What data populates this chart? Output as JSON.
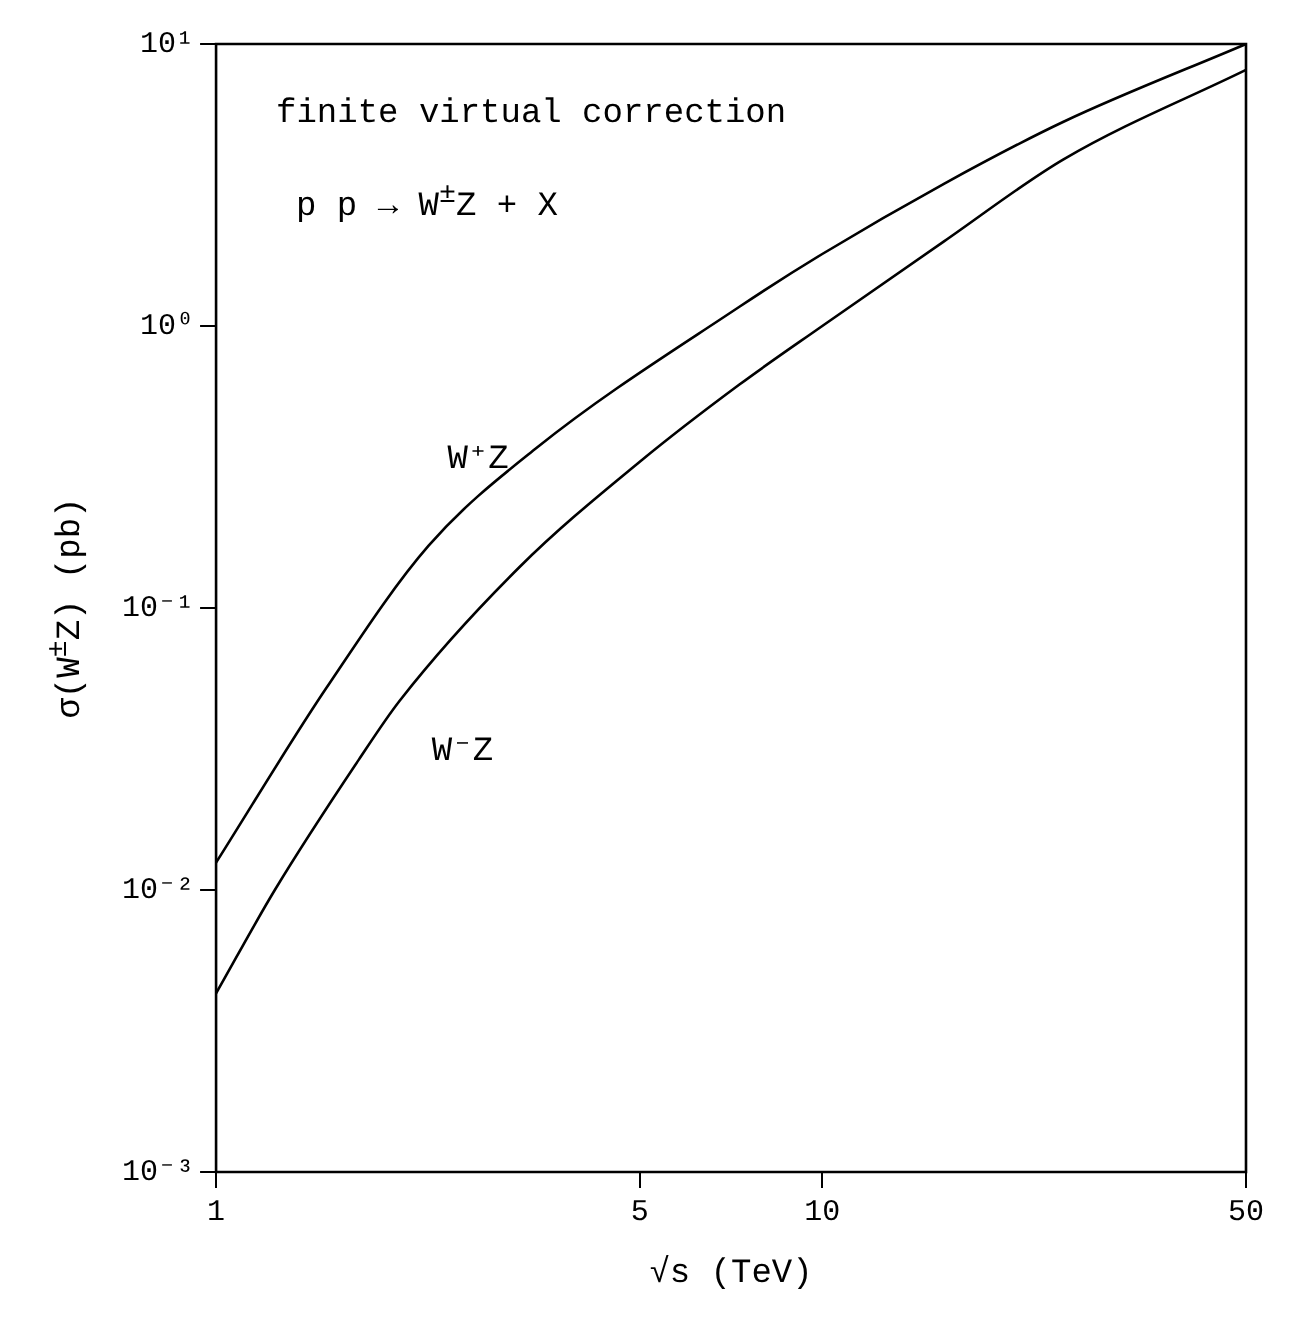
{
  "chart_data": {
    "type": "line",
    "xlabel": "√s (TeV)",
    "ylabel": "σ(W$^{±}$Z) (pb)",
    "annotations": [
      "finite virtual correction",
      "p p → W$^{±}$Z + X"
    ],
    "log": "xy",
    "xlim": [
      1,
      50
    ],
    "ylim": [
      0.001,
      10
    ],
    "xticks": [
      1,
      5,
      10,
      50
    ],
    "yticks": [
      {
        "value": 0.001,
        "label": "10⁻³"
      },
      {
        "value": 0.01,
        "label": "10⁻²"
      },
      {
        "value": 0.1,
        "label": "10⁻¹"
      },
      {
        "value": 1,
        "label": "10⁰"
      },
      {
        "value": 10,
        "label": "10¹"
      }
    ],
    "grid": false,
    "legend": false,
    "marker": "none",
    "line_style": "solid",
    "series": [
      {
        "name": "W⁺Z",
        "color": "#000000",
        "x": [
          1,
          1.52,
          2.24,
          3.38,
          7.3,
          10,
          15.9,
          25,
          50
        ],
        "values": [
          0.0125,
          0.052,
          0.166,
          0.37,
          1.17,
          1.8,
          3.2,
          5.3,
          10
        ]
      },
      {
        "name": "W⁻Z",
        "color": "#000000",
        "x": [
          1,
          1.25,
          1.72,
          2.01,
          3.17,
          5,
          7.3,
          10,
          15.9,
          25,
          50
        ],
        "values": [
          0.0043,
          0.01,
          0.029,
          0.047,
          0.14,
          0.33,
          0.62,
          1.0,
          2.0,
          3.9,
          8.1
        ]
      }
    ]
  }
}
